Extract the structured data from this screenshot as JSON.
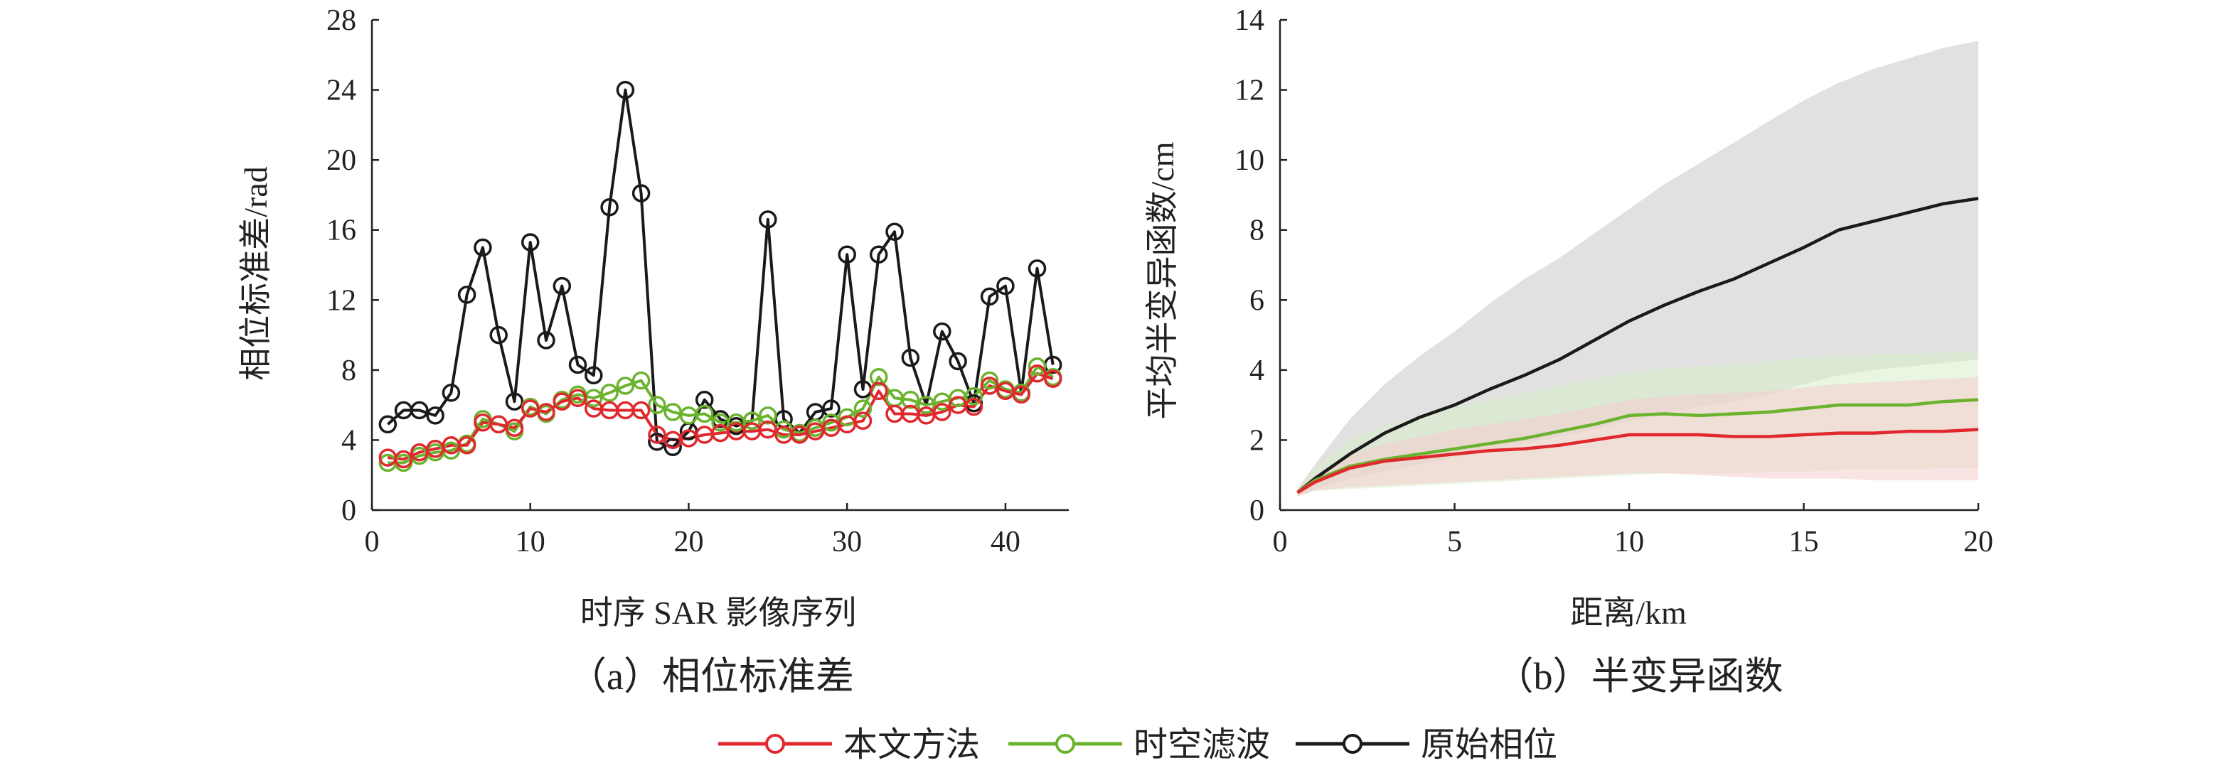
{
  "legend": {
    "items": [
      {
        "label": "本文方法",
        "color": "#e0282e"
      },
      {
        "label": "时空滤波",
        "color": "#6ab32e"
      },
      {
        "label": "原始相位",
        "color": "#1a1a1a"
      }
    ]
  },
  "chart_data": [
    {
      "type": "line",
      "caption": "（a）相位标准差",
      "xlabel": "时序 SAR 影像序列",
      "ylabel": "相位标准差/rad",
      "xlim": [
        0,
        44
      ],
      "ylim": [
        0,
        28
      ],
      "xticks": [
        0,
        10,
        20,
        30,
        40
      ],
      "yticks": [
        0,
        4,
        8,
        12,
        16,
        20,
        24,
        28
      ],
      "markers": "open-circle",
      "x": [
        1,
        2,
        3,
        4,
        5,
        6,
        7,
        8,
        9,
        10,
        11,
        12,
        13,
        14,
        15,
        16,
        17,
        18,
        19,
        20,
        21,
        22,
        23,
        24,
        25,
        26,
        27,
        28,
        29,
        30,
        31,
        32,
        33,
        34,
        35,
        36,
        37,
        38,
        39,
        40,
        41,
        42,
        43
      ],
      "series": [
        {
          "name": "原始相位",
          "color": "#1a1a1a",
          "values": [
            4.9,
            5.7,
            5.7,
            5.4,
            6.7,
            12.3,
            15.0,
            10.0,
            6.2,
            15.3,
            9.7,
            12.8,
            8.3,
            7.7,
            17.3,
            24.0,
            18.1,
            3.9,
            3.6,
            4.5,
            6.3,
            5.2,
            4.8,
            5.1,
            16.6,
            5.2,
            4.4,
            5.6,
            5.8,
            14.6,
            6.9,
            14.6,
            15.9,
            8.7,
            6.0,
            10.2,
            8.5,
            6.1,
            12.2,
            12.8,
            6.7,
            13.8,
            8.3
          ]
        },
        {
          "name": "时空滤波",
          "color": "#6ab32e",
          "values": [
            2.7,
            2.7,
            3.1,
            3.3,
            3.4,
            3.8,
            5.2,
            4.9,
            4.5,
            5.9,
            5.5,
            6.3,
            6.6,
            6.4,
            6.7,
            7.1,
            7.4,
            6.0,
            5.6,
            5.4,
            5.5,
            5.0,
            5.0,
            5.1,
            5.4,
            4.6,
            4.4,
            4.7,
            5.0,
            5.3,
            5.8,
            7.6,
            6.4,
            6.3,
            6.0,
            6.2,
            6.4,
            6.5,
            7.4,
            6.9,
            6.7,
            8.2,
            7.6
          ]
        },
        {
          "name": "本文方法",
          "color": "#e0282e",
          "values": [
            3.0,
            2.9,
            3.3,
            3.5,
            3.7,
            3.7,
            5.0,
            4.9,
            4.7,
            5.8,
            5.6,
            6.2,
            6.4,
            5.8,
            5.7,
            5.7,
            5.7,
            4.3,
            4.0,
            4.1,
            4.3,
            4.4,
            4.5,
            4.5,
            4.6,
            4.3,
            4.3,
            4.5,
            4.7,
            4.9,
            5.1,
            6.8,
            5.5,
            5.5,
            5.4,
            5.6,
            6.0,
            5.9,
            7.1,
            6.8,
            6.6,
            7.8,
            7.5
          ]
        }
      ]
    },
    {
      "type": "line",
      "caption": "（b）半变异函数",
      "xlabel": "距离/km",
      "ylabel": "平均半变异函数/cm",
      "xlim": [
        0,
        20
      ],
      "ylim": [
        0,
        14
      ],
      "xticks": [
        0,
        5,
        10,
        15,
        20
      ],
      "yticks": [
        0,
        2,
        4,
        6,
        8,
        10,
        12,
        14
      ],
      "x": [
        0.5,
        1,
        2,
        3,
        4,
        5,
        6,
        7,
        8,
        9,
        10,
        11,
        12,
        13,
        14,
        15,
        16,
        17,
        18,
        19,
        20
      ],
      "series": [
        {
          "name": "原始相位",
          "color": "#1a1a1a",
          "values": [
            0.5,
            0.9,
            1.6,
            2.2,
            2.65,
            3.0,
            3.45,
            3.85,
            4.3,
            4.85,
            5.4,
            5.85,
            6.25,
            6.6,
            7.05,
            7.5,
            8.0,
            8.25,
            8.5,
            8.75,
            8.9
          ],
          "band_lower": [
            0.4,
            0.6,
            0.9,
            1.1,
            1.3,
            1.5,
            1.7,
            1.9,
            2.1,
            2.3,
            2.55,
            2.75,
            2.95,
            3.1,
            3.3,
            3.6,
            3.85,
            4.0,
            4.1,
            4.2,
            4.3
          ],
          "band_upper": [
            0.6,
            1.3,
            2.6,
            3.6,
            4.4,
            5.1,
            5.9,
            6.6,
            7.2,
            7.9,
            8.6,
            9.3,
            9.9,
            10.5,
            11.1,
            11.7,
            12.2,
            12.6,
            12.9,
            13.2,
            13.4
          ],
          "band_color": "#c8c8c8"
        },
        {
          "name": "时空滤波",
          "color": "#6ab32e",
          "values": [
            0.5,
            0.85,
            1.25,
            1.45,
            1.6,
            1.75,
            1.9,
            2.05,
            2.25,
            2.45,
            2.7,
            2.75,
            2.7,
            2.75,
            2.8,
            2.9,
            3.0,
            3.0,
            3.0,
            3.1,
            3.15
          ],
          "band_lower": [
            0.4,
            0.55,
            0.6,
            0.65,
            0.7,
            0.75,
            0.8,
            0.85,
            0.9,
            0.95,
            1.0,
            1.05,
            1.05,
            1.05,
            1.1,
            1.1,
            1.15,
            1.15,
            1.15,
            1.2,
            1.2
          ],
          "band_upper": [
            0.6,
            1.2,
            2.0,
            2.4,
            2.7,
            2.95,
            3.15,
            3.35,
            3.55,
            3.75,
            3.95,
            4.05,
            4.1,
            4.15,
            4.25,
            4.35,
            4.4,
            4.45,
            4.45,
            4.5,
            4.55
          ],
          "band_color": "#d7efcb"
        },
        {
          "name": "本文方法",
          "color": "#e0282e",
          "values": [
            0.5,
            0.8,
            1.2,
            1.4,
            1.5,
            1.6,
            1.7,
            1.75,
            1.85,
            2.0,
            2.15,
            2.15,
            2.15,
            2.1,
            2.1,
            2.15,
            2.2,
            2.2,
            2.25,
            2.25,
            2.3
          ],
          "band_lower": [
            0.4,
            0.55,
            0.65,
            0.7,
            0.75,
            0.8,
            0.85,
            0.9,
            0.95,
            1.0,
            1.05,
            1.05,
            1.0,
            0.95,
            0.9,
            0.9,
            0.9,
            0.85,
            0.85,
            0.85,
            0.85
          ],
          "band_upper": [
            0.6,
            1.0,
            1.6,
            1.9,
            2.1,
            2.3,
            2.45,
            2.6,
            2.75,
            2.95,
            3.15,
            3.25,
            3.3,
            3.35,
            3.4,
            3.5,
            3.6,
            3.65,
            3.7,
            3.75,
            3.8
          ],
          "band_color": "#f6cccc"
        }
      ]
    }
  ]
}
